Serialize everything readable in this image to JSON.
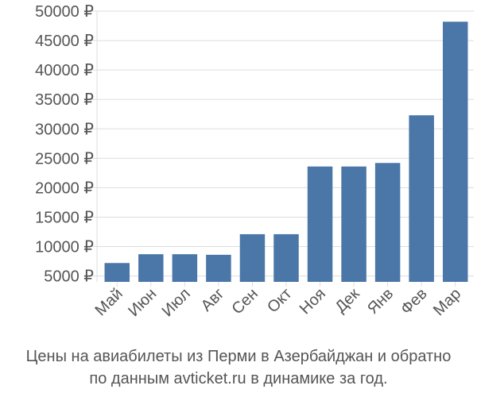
{
  "chart_data": {
    "type": "bar",
    "categories": [
      "Май",
      "Июн",
      "Июл",
      "Авг",
      "Сен",
      "Окт",
      "Ноя",
      "Дек",
      "Янв",
      "Фев",
      "Мар"
    ],
    "series": [
      {
        "values": [
          7200,
          8700,
          8700,
          8600,
          12100,
          12100,
          23600,
          23600,
          24200,
          32300,
          48200
        ],
        "color": "#4a76a8"
      }
    ],
    "y_ticks": [
      5000,
      10000,
      15000,
      20000,
      25000,
      30000,
      35000,
      40000,
      45000,
      50000
    ],
    "y_tick_labels": [
      "5000 ₽",
      "10000 ₽",
      "15000 ₽",
      "20000 ₽",
      "25000 ₽",
      "30000 ₽",
      "35000 ₽",
      "40000 ₽",
      "45000 ₽",
      "50000 ₽"
    ],
    "ylim": [
      4000,
      50000
    ],
    "grid": true,
    "grid_color": "#dddddd",
    "title": "",
    "xlabel": "",
    "ylabel": ""
  },
  "caption": {
    "line1": "Цены на авиабилеты из Перми в Азербайджан и обратно",
    "line2": "по данным avticket.ru в динамике за год."
  }
}
